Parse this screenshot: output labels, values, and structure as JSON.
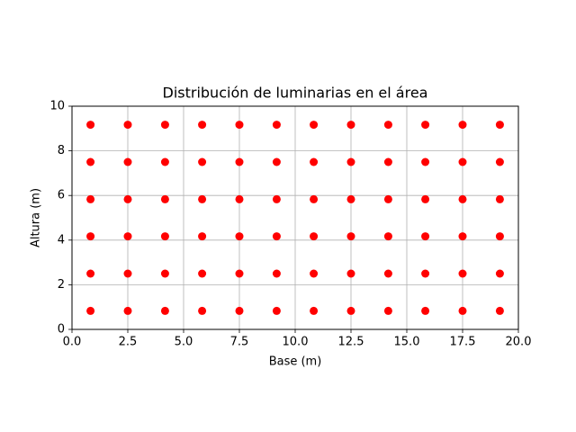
{
  "chart_data": {
    "type": "scatter",
    "title": "Distribución de luminarias en el área",
    "xlabel": "Base (m)",
    "ylabel": "Altura (m)",
    "color": "#ff0000",
    "grid": true,
    "x": [
      0.83,
      2.5,
      4.17,
      5.83,
      7.5,
      9.17,
      10.83,
      12.5,
      14.17,
      15.83,
      17.5,
      19.17,
      0.83,
      2.5,
      4.17,
      5.83,
      7.5,
      9.17,
      10.83,
      12.5,
      14.17,
      15.83,
      17.5,
      19.17,
      0.83,
      2.5,
      4.17,
      5.83,
      7.5,
      9.17,
      10.83,
      12.5,
      14.17,
      15.83,
      17.5,
      19.17,
      0.83,
      2.5,
      4.17,
      5.83,
      7.5,
      9.17,
      10.83,
      12.5,
      14.17,
      15.83,
      17.5,
      19.17,
      0.83,
      2.5,
      4.17,
      5.83,
      7.5,
      9.17,
      10.83,
      12.5,
      14.17,
      15.83,
      17.5,
      19.17,
      0.83,
      2.5,
      4.17,
      5.83,
      7.5,
      9.17,
      10.83,
      12.5,
      14.17,
      15.83,
      17.5,
      19.17
    ],
    "values": [
      0.83,
      0.83,
      0.83,
      0.83,
      0.83,
      0.83,
      0.83,
      0.83,
      0.83,
      0.83,
      0.83,
      0.83,
      2.5,
      2.5,
      2.5,
      2.5,
      2.5,
      2.5,
      2.5,
      2.5,
      2.5,
      2.5,
      2.5,
      2.5,
      4.17,
      4.17,
      4.17,
      4.17,
      4.17,
      4.17,
      4.17,
      4.17,
      4.17,
      4.17,
      4.17,
      4.17,
      5.83,
      5.83,
      5.83,
      5.83,
      5.83,
      5.83,
      5.83,
      5.83,
      5.83,
      5.83,
      5.83,
      5.83,
      7.5,
      7.5,
      7.5,
      7.5,
      7.5,
      7.5,
      7.5,
      7.5,
      7.5,
      7.5,
      7.5,
      7.5,
      9.17,
      9.17,
      9.17,
      9.17,
      9.17,
      9.17,
      9.17,
      9.17,
      9.17,
      9.17,
      9.17,
      9.17
    ],
    "xlim": [
      0,
      20
    ],
    "ylim": [
      0,
      10
    ],
    "xticks": [
      {
        "value": 0,
        "label": "0.0"
      },
      2.5,
      {
        "value": 5,
        "label": "5.0"
      },
      7.5,
      {
        "value": 10,
        "label": "10.0"
      },
      12.5,
      {
        "value": 15,
        "label": "15.0"
      },
      17.5,
      {
        "value": 20,
        "label": "20.0"
      }
    ],
    "yticks": [
      0,
      2,
      4,
      6,
      8,
      10
    ]
  }
}
